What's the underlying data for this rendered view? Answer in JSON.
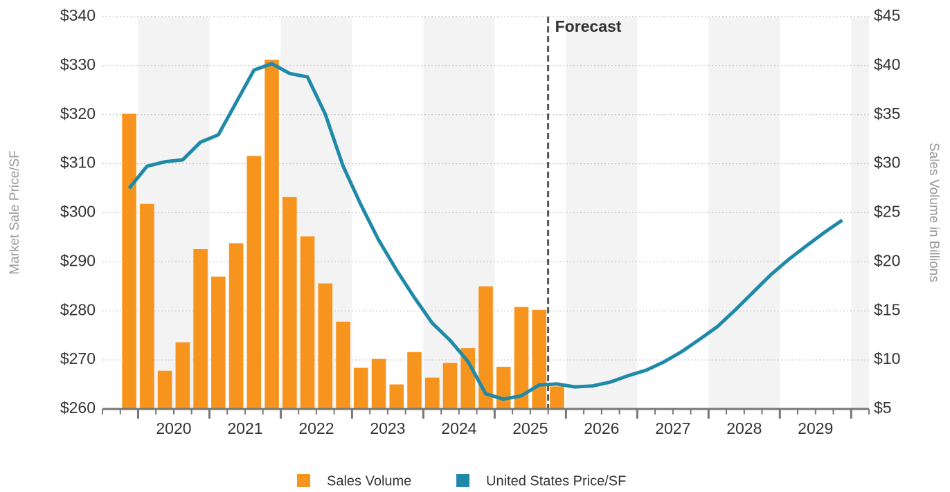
{
  "chart_data": {
    "type": "bar_line",
    "annotation": "Forecast",
    "y_label": "Market Sale Price/SF",
    "y2_label": "Sales Volume in Billions",
    "year_labels": [
      "2020",
      "2021",
      "2022",
      "2023",
      "2024",
      "2025",
      "2026",
      "2027",
      "2028",
      "2029"
    ],
    "ylim": [
      260,
      340
    ],
    "yticks": [
      {
        "value": 260,
        "label": "$260"
      },
      {
        "value": 270,
        "label": "$270"
      },
      {
        "value": 280,
        "label": "$280"
      },
      {
        "value": 290,
        "label": "$290"
      },
      {
        "value": 300,
        "label": "$300"
      },
      {
        "value": 310,
        "label": "$310"
      },
      {
        "value": 320,
        "label": "$320"
      },
      {
        "value": 330,
        "label": "$330"
      },
      {
        "value": 340,
        "label": "$340"
      }
    ],
    "y2lim": [
      5,
      45
    ],
    "y2ticks": [
      {
        "value": 5,
        "label": "$5"
      },
      {
        "value": 10,
        "label": "$10"
      },
      {
        "value": 15,
        "label": "$15"
      },
      {
        "value": 20,
        "label": "$20"
      },
      {
        "value": 25,
        "label": "$25"
      },
      {
        "value": 30,
        "label": "$30"
      },
      {
        "value": 35,
        "label": "$35"
      },
      {
        "value": 40,
        "label": "$40"
      },
      {
        "value": 45,
        "label": "$45"
      }
    ],
    "grid": true,
    "series": [
      {
        "name": "Sales Volume",
        "type": "bar",
        "axis": "y2",
        "color": "#f7941d",
        "values": [
          null,
          35.1,
          25.9,
          8.9,
          11.8,
          21.3,
          18.5,
          21.9,
          30.8,
          40.6,
          26.6,
          22.6,
          17.8,
          13.9,
          9.2,
          10.1,
          7.5,
          10.8,
          8.2,
          9.7,
          11.2,
          17.5,
          9.3,
          15.4,
          15.1,
          7.3,
          null,
          null,
          null,
          null,
          null,
          null,
          null,
          null,
          null,
          null,
          null,
          null,
          null,
          null,
          null,
          null,
          null
        ]
      },
      {
        "name": "United States Price/SF",
        "type": "line",
        "color": "#1e8aa8",
        "values": [
          null,
          305.0,
          309.5,
          310.4,
          310.8,
          314.4,
          315.9,
          322.5,
          329.1,
          330.4,
          328.4,
          327.7,
          320.1,
          309.5,
          301.6,
          294.4,
          288.3,
          282.7,
          277.5,
          274.0,
          269.7,
          263.1,
          262.0,
          262.7,
          264.9,
          265.1,
          264.5,
          264.7,
          265.5,
          266.8,
          267.9,
          269.6,
          271.7,
          274.2,
          276.8,
          280.2,
          283.8,
          287.4,
          290.5,
          293.3,
          296.0,
          298.5,
          null
        ]
      }
    ]
  }
}
